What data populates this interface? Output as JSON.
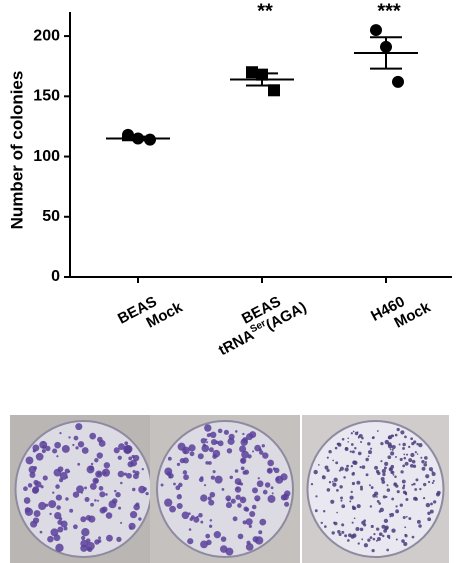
{
  "chart_data": {
    "type": "dot",
    "y_label": "Number of colonies",
    "categories": [
      [
        "BEAS",
        "Mock"
      ],
      [
        "BEAS",
        [
          "tRNA",
          "Ser",
          "(AGA)"
        ]
      ],
      [
        "H460",
        "Mock"
      ]
    ],
    "annotations": [
      null,
      "**",
      "***"
    ],
    "groups": [
      {
        "values": [
          118,
          115,
          114
        ],
        "mean": 115,
        "sem": 1.5,
        "marker": "circle"
      },
      {
        "values": [
          170,
          168,
          155
        ],
        "mean": 164,
        "sem": 5,
        "marker": "square"
      },
      {
        "values": [
          205,
          191,
          162
        ],
        "mean": 186,
        "sem": 13,
        "marker": "circle"
      }
    ],
    "color": "#000000",
    "ylim": [
      0,
      220
    ],
    "yticks": [
      0,
      50,
      100,
      150,
      200
    ]
  }
}
